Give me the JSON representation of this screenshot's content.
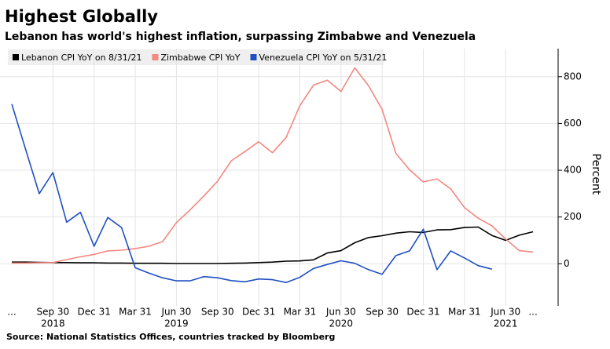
{
  "chart_data": {
    "type": "line",
    "title": "Highest Globally",
    "subtitle": "Lebanon has world's highest inflation, surpassing Zimbabwe and Venezuela",
    "source": "Source: National Statistics Offices, countries tracked by Bloomberg",
    "y_axis_label": "Percent",
    "categories": [
      "...",
      null,
      null,
      "Sep 30",
      null,
      null,
      "Dec 31",
      null,
      null,
      "Mar 31",
      null,
      null,
      "Jun 30",
      null,
      null,
      "Sep 30",
      null,
      null,
      "Dec 31",
      null,
      null,
      "Mar 31",
      null,
      null,
      "Jun 30",
      null,
      null,
      "Sep 30",
      null,
      null,
      "Dec 31",
      null,
      null,
      "Mar 31",
      null,
      null,
      "Jun 30",
      null,
      "..."
    ],
    "category_years": [
      null,
      null,
      null,
      "2018",
      null,
      null,
      null,
      null,
      null,
      null,
      null,
      null,
      "2019",
      null,
      null,
      null,
      null,
      null,
      null,
      null,
      null,
      null,
      null,
      null,
      "2020",
      null,
      null,
      null,
      null,
      null,
      null,
      null,
      null,
      null,
      null,
      null,
      "2021",
      null,
      null
    ],
    "series": [
      {
        "name": "Lebanon CPI YoY on 8/31/21",
        "color": "#000000",
        "values": [
          7,
          7,
          6,
          5,
          5,
          4,
          4,
          3,
          3,
          2,
          2,
          2,
          1,
          1,
          1,
          1,
          2,
          3,
          5,
          7,
          11,
          12,
          17,
          46,
          56,
          90,
          112,
          120,
          131,
          137,
          134,
          145,
          146,
          155,
          157,
          121,
          100,
          122,
          137
        ]
      },
      {
        "name": "Zimbabwe CPI YoY",
        "color": "#f4877f",
        "values": [
          3,
          3,
          4,
          5,
          18,
          30,
          40,
          55,
          58,
          65,
          75,
          95,
          176,
          230,
          290,
          353,
          440,
          480,
          522,
          475,
          540,
          676,
          764,
          785,
          737,
          838,
          762,
          660,
          472,
          402,
          350,
          363,
          320,
          240,
          195,
          162,
          106,
          56,
          50
        ]
      },
      {
        "name": "Venezuela CPI YoY on 5/31/21",
        "color": "#1f4fc1",
        "values": [
          683,
          490,
          300,
          390,
          178,
          220,
          75,
          198,
          155,
          -17,
          -40,
          -60,
          -73,
          -73,
          -55,
          -60,
          -72,
          -77,
          -65,
          -68,
          -80,
          -58,
          -20,
          -3,
          13,
          2,
          -25,
          -45,
          35,
          55,
          148,
          -25,
          55,
          25,
          -8,
          -23,
          null,
          null,
          null
        ]
      }
    ],
    "ylim": [
      -180,
      920
    ],
    "yticks": [
      0,
      200,
      400,
      600,
      800
    ],
    "grid": true,
    "y_axis_side": "right",
    "legend": "top-left"
  }
}
